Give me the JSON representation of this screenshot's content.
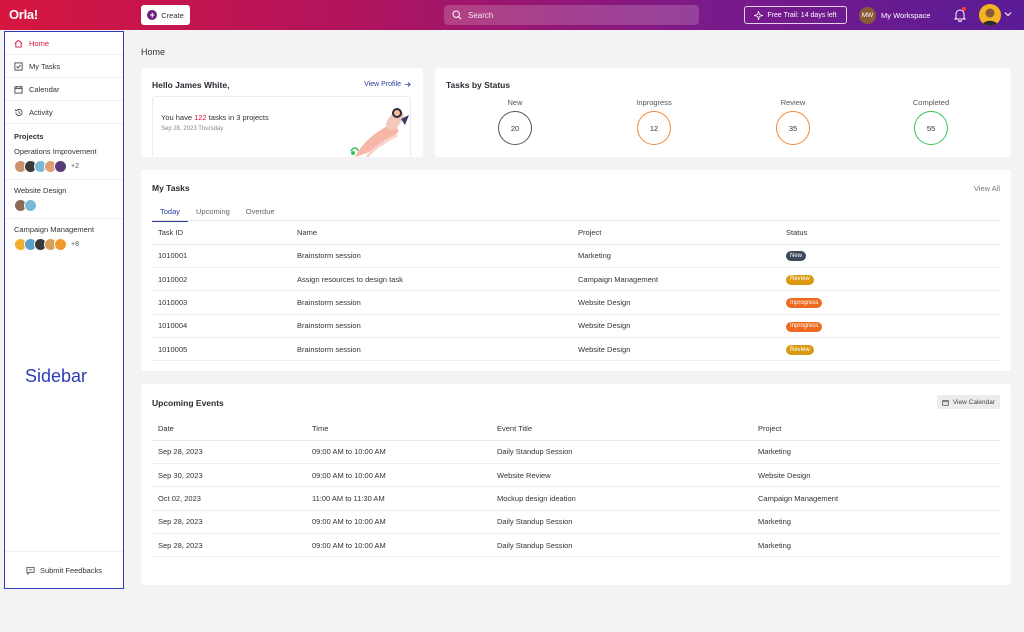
{
  "topbar": {
    "logo": "Orla!",
    "create_label": "Create",
    "search_placeholder": "Search",
    "trial_label": "Free Trail: 14 days left",
    "workspace_initials": "MW",
    "workspace_label": "My Workspace",
    "icons": {
      "search": "search-icon",
      "bell": "bell-icon",
      "trial": "sparkle-icon"
    }
  },
  "sidebar": {
    "nav": [
      {
        "label": "Home",
        "icon": "home-icon",
        "active": true
      },
      {
        "label": "My Tasks",
        "icon": "checkbox-icon",
        "active": false
      },
      {
        "label": "Calendar",
        "icon": "calendar-icon",
        "active": false
      },
      {
        "label": "Activity",
        "icon": "history-icon",
        "active": false
      }
    ],
    "projects_title": "Projects",
    "projects": [
      {
        "name": "Operations Improvement",
        "avatar_colors": [
          "#c9946b",
          "#3a3a3a",
          "#7ab8d6",
          "#e0a070",
          "#5a3a7a"
        ],
        "more": "+2"
      },
      {
        "name": "Website Design",
        "avatar_colors": [
          "#8a6a5a",
          "#7ab8d6"
        ],
        "more": ""
      },
      {
        "name": "Campaign Management",
        "avatar_colors": [
          "#f0b030",
          "#5aa0c8",
          "#3a3a3a",
          "#d6a05a",
          "#f39a2a"
        ],
        "more": "+8"
      }
    ],
    "annotation_label": "Sidebar",
    "feedback_label": "Submit Feedbacks"
  },
  "main": {
    "page_title": "Home",
    "hello": {
      "title": "Hello James White,",
      "view_profile": "View Profile",
      "text_prefix": "You have ",
      "task_count": "122",
      "text_suffix": " tasks in 3 projects",
      "date": "Sep 28, 2023 Thursday"
    },
    "status": {
      "title": "Tasks by Status",
      "items": [
        {
          "label": "New",
          "value": "20",
          "color": "#555555"
        },
        {
          "label": "Inprogress",
          "value": "12",
          "color": "#f08a3a"
        },
        {
          "label": "Review",
          "value": "35",
          "color": "#f08a3a"
        },
        {
          "label": "Completed",
          "value": "55",
          "color": "#3ac25a"
        }
      ]
    },
    "tasks": {
      "title": "My Tasks",
      "view_all": "View All",
      "tabs": [
        "Today",
        "Upcoming",
        "Overdue"
      ],
      "active_tab": 0,
      "columns": [
        "Task ID",
        "Name",
        "Project",
        "Status"
      ],
      "rows": [
        {
          "id": "1010001",
          "name": "Brainstorm session",
          "project": "Marketing",
          "status": "New",
          "status_color": "#3d4a5c"
        },
        {
          "id": "1010002",
          "name": "Assign resources to design task",
          "project": "Campaign Management",
          "status": "Review",
          "status_color": "#d99a12"
        },
        {
          "id": "1010003",
          "name": "Brainstorm session",
          "project": "Website Design",
          "status": "Inprogress",
          "status_color": "#ee6a1e"
        },
        {
          "id": "1010004",
          "name": "Brainstorm session",
          "project": "Website Design",
          "status": "Inprogress",
          "status_color": "#ee6a1e"
        },
        {
          "id": "1010005",
          "name": "Brainstorm session",
          "project": "Website Design",
          "status": "Review",
          "status_color": "#d99a12"
        }
      ]
    },
    "events": {
      "title": "Upcoming Events",
      "view_calendar": "View Calendar",
      "columns": [
        "Date",
        "Time",
        "Event Title",
        "Project"
      ],
      "rows": [
        {
          "date": "Sep 28, 2023",
          "time": "09:00 AM to 10:00 AM",
          "title": "Daily Standup Session",
          "project": "Marketing"
        },
        {
          "date": "Sep 30, 2023",
          "time": "09:00 AM to 10:00 AM",
          "title": "Website Review",
          "project": "Website Design"
        },
        {
          "date": "Oct 02, 2023",
          "time": "11:00 AM to 11:30 AM",
          "title": "Mockup design ideation",
          "project": "Campaign Management"
        },
        {
          "date": "Sep 28, 2023",
          "time": "09:00 AM to 10:00 AM",
          "title": "Daily Standup Session",
          "project": "Marketing"
        },
        {
          "date": "Sep 28, 2023",
          "time": "09:00 AM to 10:00 AM",
          "title": "Daily Standup Session",
          "project": "Marketing"
        }
      ]
    }
  }
}
